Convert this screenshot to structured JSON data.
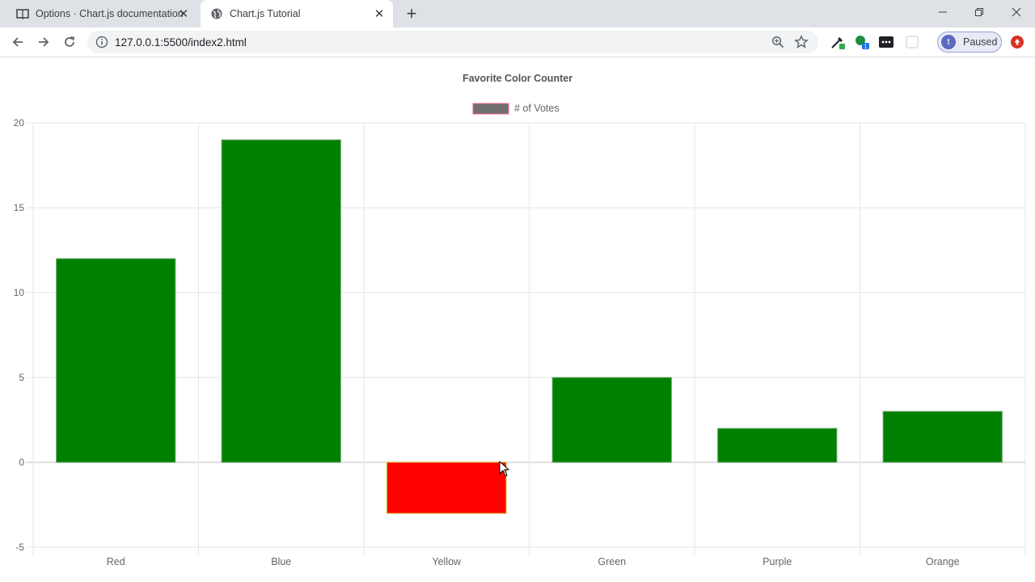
{
  "browser": {
    "tabs": [
      {
        "title": "Options · Chart.js documentation",
        "icon": "book-icon",
        "active": false
      },
      {
        "title": "Chart.js Tutorial",
        "icon": "globe-icon",
        "active": true
      }
    ],
    "url": "127.0.0.1:5500/index2.html",
    "profile_initial": "t",
    "profile_status": "Paused"
  },
  "colors": {
    "bar_fill": "#008000",
    "bar_negative": "#ff0000",
    "legend_swatch": "#6f6f6f",
    "legend_border": "#ff6384"
  },
  "chart_data": {
    "type": "bar",
    "title": "Favorite Color Counter",
    "categories": [
      "Red",
      "Blue",
      "Yellow",
      "Green",
      "Purple",
      "Orange"
    ],
    "series": [
      {
        "name": "# of Votes",
        "values": [
          12,
          19,
          -3,
          5,
          2,
          3
        ]
      }
    ],
    "ylim": [
      -5,
      20
    ],
    "yticks": [
      20,
      15,
      10,
      5,
      0,
      -5
    ],
    "legend": "top",
    "grid": true
  }
}
